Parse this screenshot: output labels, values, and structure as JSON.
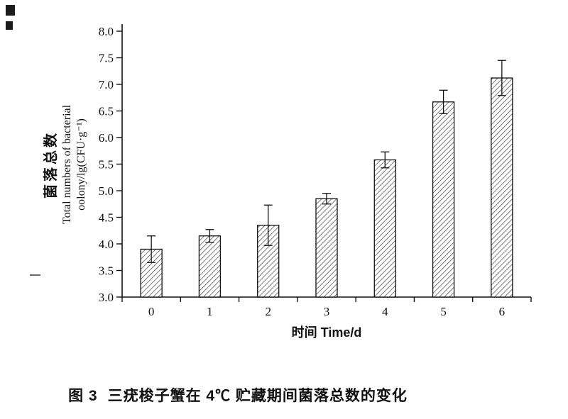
{
  "caption": {
    "label": "图 3",
    "text": "三疣梭子蟹在 4℃ 贮藏期间菌落总数的变化"
  },
  "chart_data": {
    "type": "bar",
    "categories": [
      "0",
      "1",
      "2",
      "3",
      "4",
      "5",
      "6"
    ],
    "values": [
      3.9,
      4.15,
      4.35,
      4.85,
      5.58,
      6.67,
      7.12
    ],
    "errors": [
      0.25,
      0.12,
      0.38,
      0.1,
      0.15,
      0.22,
      0.33
    ],
    "title": "",
    "xlabel": "时间 Time/d",
    "ylabel_cn": "菌落总数",
    "ylabel_en1": "Total numbers of bacterial",
    "ylabel_en2": "oolony/lg(CFU·g⁻¹)",
    "ylim": [
      3.0,
      8.0
    ],
    "ytick_step": 0.5,
    "yticks": [
      "8.0",
      "7.5",
      "7.0",
      "6.5",
      "6.0",
      "5.5",
      "5.0",
      "4.5",
      "4.0",
      "3.5",
      "3.0"
    ],
    "bar_fill": "diagonal-hatch",
    "bar_color": "#333333",
    "axis_color": "#111111",
    "grid": false,
    "legend": null
  }
}
